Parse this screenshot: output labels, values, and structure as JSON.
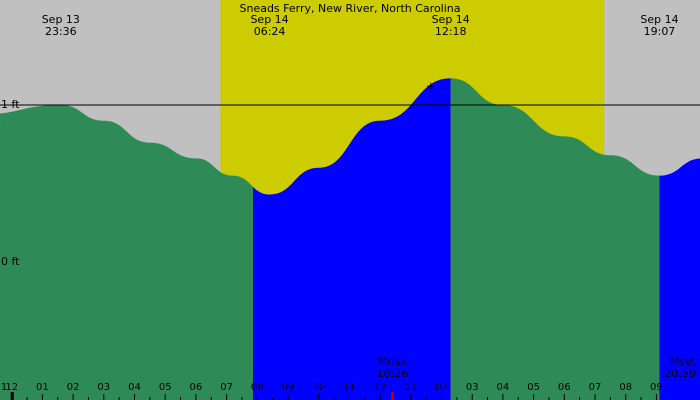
{
  "chart_data": {
    "type": "area",
    "title": "Sneads Ferry, New River, North Carolina",
    "x_unit": "hours since Sep 13 21:00",
    "events": [
      {
        "date": "Sep 13",
        "time": "23:36",
        "x": 2.6,
        "y": 1.0,
        "kind": "high"
      },
      {
        "date": "Sep 14",
        "time": "06:24",
        "x": 9.4,
        "y": 0.43,
        "kind": "low"
      },
      {
        "date": "Sep 14",
        "time": "12:18",
        "x": 15.3,
        "y": 1.17,
        "kind": "high"
      },
      {
        "date": "Sep 14",
        "time": "19:07",
        "x": 22.1,
        "y": 0.55,
        "kind": "low"
      }
    ],
    "curve": [
      [
        0,
        0.94
      ],
      [
        2.6,
        1.0
      ],
      [
        4.0,
        0.9
      ],
      [
        5.5,
        0.76
      ],
      [
        7.0,
        0.66
      ],
      [
        8.2,
        0.55
      ],
      [
        9.4,
        0.43
      ],
      [
        11.0,
        0.6
      ],
      [
        13.0,
        0.9
      ],
      [
        15.3,
        1.17
      ],
      [
        17.0,
        1.0
      ],
      [
        19.0,
        0.8
      ],
      [
        20.5,
        0.68
      ],
      [
        22.1,
        0.55
      ],
      [
        23.5,
        0.66
      ],
      [
        25.0,
        0.85
      ]
    ],
    "segments": [
      {
        "from": 0,
        "to": 0.62,
        "state": "flood"
      },
      {
        "from": 0.62,
        "to": 8.86,
        "state": "ebb"
      },
      {
        "from": 8.86,
        "to": 15.3,
        "state": "flood"
      },
      {
        "from": 15.3,
        "to": 22.1,
        "state": "ebb"
      },
      {
        "from": 22.1,
        "to": 25.0,
        "state": "flood"
      }
    ],
    "daylight": {
      "start": 7.8,
      "end": 20.3
    },
    "y_ticks": [
      {
        "value": 1.0,
        "label": "1 ft"
      },
      {
        "value": 0.0,
        "label": "0 ft"
      }
    ],
    "hour_labels": [
      "1",
      "12",
      "01",
      "02",
      "03",
      "04",
      "05",
      "06",
      "07",
      "08",
      "09",
      "10",
      "11",
      "12",
      "01",
      "02",
      "03",
      "04",
      "05",
      "06",
      "07",
      "08",
      "09"
    ],
    "moon": [
      {
        "name": "Mrise",
        "time": "10:26",
        "x": 13.4
      },
      {
        "name": "Mset",
        "time": "20:59",
        "x": 23.9
      }
    ],
    "peak_marker": "+",
    "colors": {
      "night": "#c0c0c0",
      "day": "#cccc00",
      "flood": "#0000ff",
      "ebb": "#2e8b57",
      "line": "#000000",
      "moon_tick": "#cc0000"
    },
    "x_range": [
      0,
      25.0
    ],
    "y_range": [
      -0.55,
      1.53
    ]
  }
}
